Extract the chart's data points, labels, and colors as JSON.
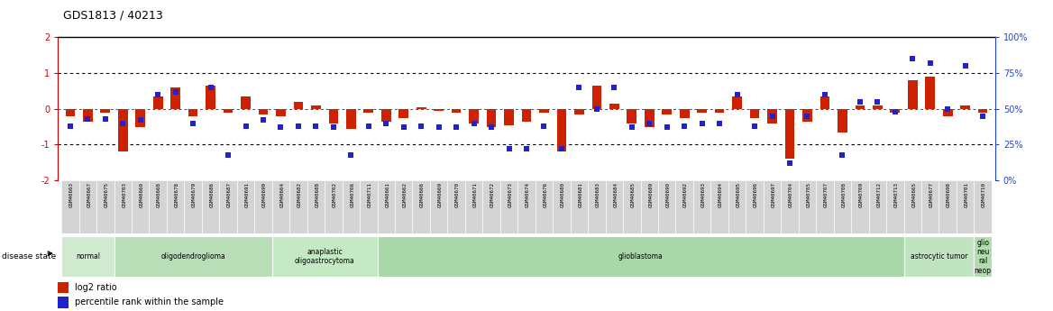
{
  "title": "GDS1813 / 40213",
  "samples": [
    "GSM40663",
    "GSM40667",
    "GSM40675",
    "GSM40703",
    "GSM40660",
    "GSM40668",
    "GSM40678",
    "GSM40679",
    "GSM40686",
    "GSM40687",
    "GSM40691",
    "GSM40699",
    "GSM40664",
    "GSM40682",
    "GSM40688",
    "GSM40702",
    "GSM40706",
    "GSM40711",
    "GSM40661",
    "GSM40662",
    "GSM40666",
    "GSM40669",
    "GSM40670",
    "GSM40671",
    "GSM40672",
    "GSM40673",
    "GSM40674",
    "GSM40676",
    "GSM40680",
    "GSM40681",
    "GSM40683",
    "GSM40684",
    "GSM40685",
    "GSM40689",
    "GSM40690",
    "GSM40692",
    "GSM40693",
    "GSM40694",
    "GSM40695",
    "GSM40696",
    "GSM40697",
    "GSM40704",
    "GSM40705",
    "GSM40707",
    "GSM40708",
    "GSM40709",
    "GSM40712",
    "GSM40713",
    "GSM40665",
    "GSM40677",
    "GSM40698",
    "GSM40701",
    "GSM40710"
  ],
  "log2_ratio": [
    -0.2,
    -0.35,
    -0.1,
    -1.2,
    -0.5,
    0.35,
    0.6,
    -0.2,
    0.65,
    -0.1,
    0.35,
    -0.15,
    -0.2,
    0.2,
    0.1,
    -0.4,
    -0.55,
    -0.1,
    -0.35,
    -0.25,
    0.05,
    -0.05,
    -0.1,
    -0.4,
    -0.5,
    -0.45,
    -0.35,
    -0.1,
    -1.2,
    -0.15,
    0.65,
    0.15,
    -0.4,
    -0.5,
    -0.15,
    -0.25,
    -0.1,
    -0.1,
    0.35,
    -0.25,
    -0.4,
    -1.4,
    -0.35,
    0.35,
    -0.65,
    0.1,
    0.1,
    -0.1,
    0.8,
    0.9,
    -0.2,
    0.1,
    -0.1
  ],
  "percentile": [
    38,
    43,
    43,
    40,
    42,
    60,
    62,
    40,
    65,
    18,
    38,
    42,
    37,
    38,
    38,
    37,
    18,
    38,
    40,
    37,
    38,
    37,
    37,
    40,
    37,
    22,
    22,
    38,
    22,
    65,
    50,
    65,
    37,
    40,
    37,
    38,
    40,
    40,
    60,
    38,
    45,
    12,
    45,
    60,
    18,
    55,
    55,
    48,
    85,
    82,
    50,
    80,
    45
  ],
  "disease_groups": [
    {
      "label": "normal",
      "start": 0,
      "end": 3,
      "color": "#d0ead0"
    },
    {
      "label": "oligodendroglioma",
      "start": 3,
      "end": 12,
      "color": "#b8deb8"
    },
    {
      "label": "anaplastic\noligoastrocytoma",
      "start": 12,
      "end": 18,
      "color": "#c5e8c5"
    },
    {
      "label": "glioblastoma",
      "start": 18,
      "end": 48,
      "color": "#a8d8a8"
    },
    {
      "label": "astrocytic tumor",
      "start": 48,
      "end": 52,
      "color": "#c0e4c0"
    },
    {
      "label": "glio\nneu\nral\nneop",
      "start": 52,
      "end": 53,
      "color": "#b0dcb0"
    }
  ],
  "ylim_left": [
    -2,
    2
  ],
  "ylim_right": [
    0,
    100
  ],
  "yticks_left": [
    -2,
    -1,
    0,
    1,
    2
  ],
  "yticks_right": [
    0,
    25,
    50,
    75,
    100
  ],
  "bar_color": "#cc2200",
  "dot_color": "#2222cc",
  "legend_items": [
    "log2 ratio",
    "percentile rank within the sample"
  ],
  "bg_color": "#ffffff",
  "left_tick_color": "#cc0000",
  "right_tick_color": "#2244cc"
}
